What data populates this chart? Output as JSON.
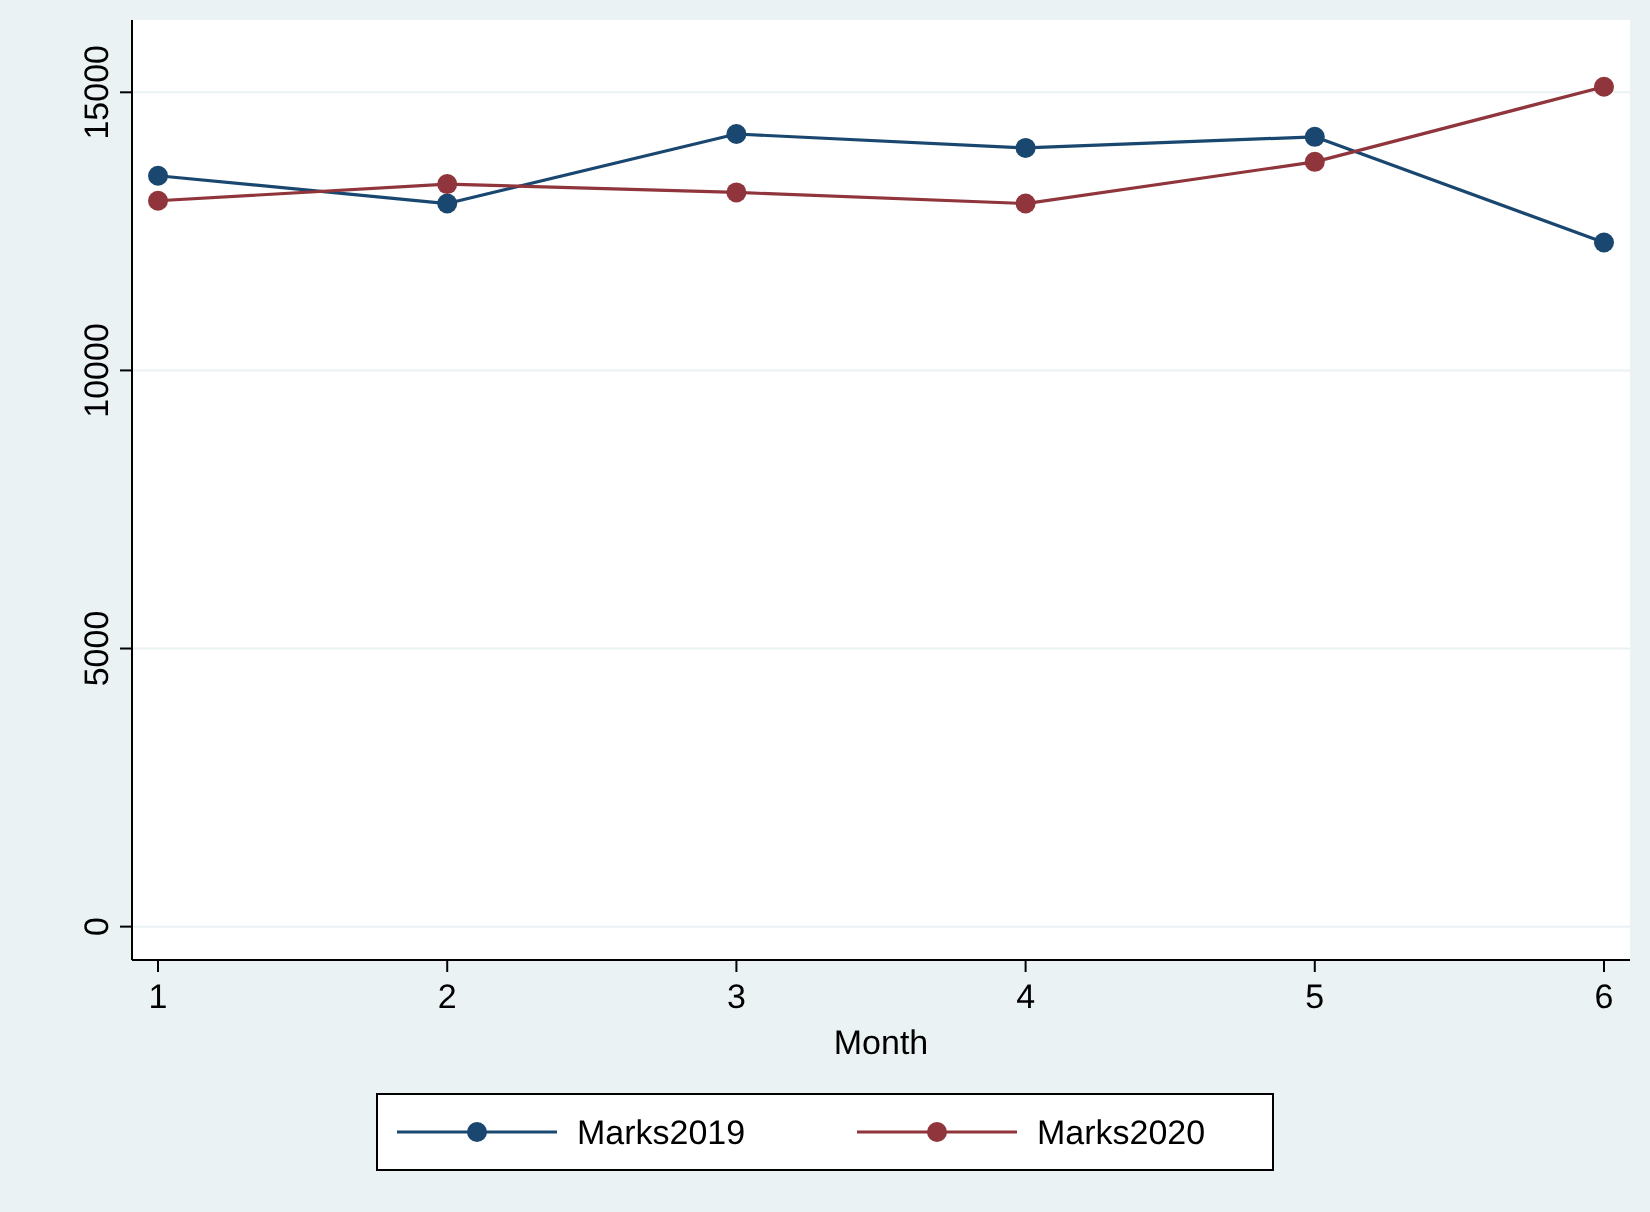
{
  "chart_data": {
    "type": "line",
    "xlabel": "Month",
    "x": [
      1,
      2,
      3,
      4,
      5,
      6
    ],
    "series": [
      {
        "name": "Marks2019",
        "color": "#1a476f",
        "values": [
          13500,
          13000,
          14250,
          14000,
          14200,
          12300
        ]
      },
      {
        "name": "Marks2020",
        "color": "#90353b",
        "values": [
          13050,
          13350,
          13200,
          13000,
          13750,
          15100
        ]
      }
    ],
    "xlim": [
      0.91,
      6.09
    ],
    "xticks": [
      1,
      2,
      3,
      4,
      5,
      6
    ],
    "ylim": [
      -600,
      16300
    ],
    "yticks": [
      0,
      5000,
      10000,
      15000
    ],
    "grid": "y",
    "legend": "bottom",
    "marker": "circle",
    "line_style": "solid"
  }
}
